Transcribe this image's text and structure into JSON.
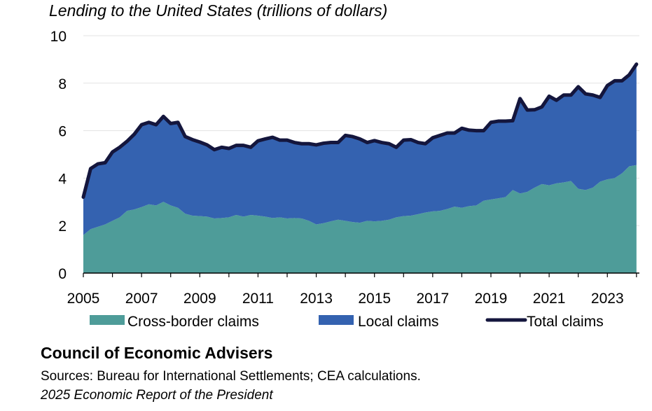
{
  "chart_data": {
    "type": "area",
    "title": "Lending to the United States (trillions of dollars)",
    "xlabel": "",
    "ylabel": "",
    "xlim": [
      2005,
      2024.1
    ],
    "ylim": [
      0,
      10
    ],
    "yticks": [
      0,
      2,
      4,
      6,
      8,
      10
    ],
    "xticks": [
      2005,
      2007,
      2009,
      2011,
      2013,
      2015,
      2017,
      2019,
      2021,
      2023
    ],
    "x": [
      2005.0,
      2005.25,
      2005.5,
      2005.75,
      2006.0,
      2006.25,
      2006.5,
      2006.75,
      2007.0,
      2007.25,
      2007.5,
      2007.75,
      2008.0,
      2008.25,
      2008.5,
      2008.75,
      2009.0,
      2009.25,
      2009.5,
      2009.75,
      2010.0,
      2010.25,
      2010.5,
      2010.75,
      2011.0,
      2011.25,
      2011.5,
      2011.75,
      2012.0,
      2012.25,
      2012.5,
      2012.75,
      2013.0,
      2013.25,
      2013.5,
      2013.75,
      2014.0,
      2014.25,
      2014.5,
      2014.75,
      2015.0,
      2015.25,
      2015.5,
      2015.75,
      2016.0,
      2016.25,
      2016.5,
      2016.75,
      2017.0,
      2017.25,
      2017.5,
      2017.75,
      2018.0,
      2018.25,
      2018.5,
      2018.75,
      2019.0,
      2019.25,
      2019.5,
      2019.75,
      2020.0,
      2020.25,
      2020.5,
      2020.75,
      2021.0,
      2021.25,
      2021.5,
      2021.75,
      2022.0,
      2022.25,
      2022.5,
      2022.75,
      2023.0,
      2023.25,
      2023.5,
      2023.75,
      2024.0
    ],
    "series": [
      {
        "name": "Cross-border claims",
        "kind": "area",
        "color": "#4e9c99",
        "values": [
          1.6,
          1.85,
          1.95,
          2.05,
          2.2,
          2.35,
          2.62,
          2.68,
          2.78,
          2.9,
          2.85,
          3.0,
          2.85,
          2.75,
          2.5,
          2.42,
          2.4,
          2.38,
          2.3,
          2.32,
          2.35,
          2.45,
          2.38,
          2.45,
          2.42,
          2.38,
          2.32,
          2.35,
          2.3,
          2.32,
          2.3,
          2.2,
          2.05,
          2.1,
          2.18,
          2.25,
          2.2,
          2.15,
          2.12,
          2.2,
          2.18,
          2.2,
          2.25,
          2.35,
          2.4,
          2.42,
          2.48,
          2.55,
          2.6,
          2.62,
          2.7,
          2.8,
          2.75,
          2.82,
          2.85,
          3.05,
          3.1,
          3.15,
          3.2,
          3.5,
          3.35,
          3.42,
          3.6,
          3.75,
          3.7,
          3.78,
          3.82,
          3.88,
          3.55,
          3.5,
          3.6,
          3.85,
          3.95,
          4.0,
          4.2,
          4.5,
          4.55
        ]
      },
      {
        "name": "Local claims",
        "kind": "area",
        "color": "#3462b0",
        "values": [
          1.6,
          2.55,
          2.65,
          2.6,
          2.9,
          2.95,
          2.93,
          3.17,
          3.47,
          3.45,
          3.4,
          3.6,
          3.45,
          3.6,
          3.25,
          3.2,
          3.12,
          3.02,
          2.9,
          2.98,
          2.9,
          2.93,
          3.0,
          2.85,
          3.15,
          3.27,
          3.4,
          3.25,
          3.3,
          3.18,
          3.15,
          3.25,
          3.35,
          3.37,
          3.32,
          3.25,
          3.6,
          3.6,
          3.53,
          3.3,
          3.4,
          3.3,
          3.2,
          2.95,
          3.2,
          3.2,
          3.02,
          2.9,
          3.1,
          3.18,
          3.2,
          3.1,
          3.35,
          3.2,
          3.15,
          2.95,
          3.25,
          3.25,
          3.2,
          2.92,
          4.0,
          3.45,
          3.28,
          3.25,
          3.75,
          3.5,
          3.68,
          3.62,
          4.3,
          4.05,
          3.9,
          3.55,
          3.95,
          4.1,
          3.9,
          3.85,
          4.25
        ]
      },
      {
        "name": "Total claims",
        "kind": "line",
        "color": "#14163d",
        "values": [
          3.2,
          4.4,
          4.6,
          4.65,
          5.1,
          5.3,
          5.55,
          5.85,
          6.25,
          6.35,
          6.25,
          6.6,
          6.3,
          6.35,
          5.75,
          5.62,
          5.52,
          5.4,
          5.2,
          5.3,
          5.25,
          5.38,
          5.38,
          5.3,
          5.57,
          5.65,
          5.72,
          5.6,
          5.6,
          5.5,
          5.45,
          5.45,
          5.4,
          5.47,
          5.5,
          5.5,
          5.8,
          5.75,
          5.65,
          5.5,
          5.58,
          5.5,
          5.45,
          5.3,
          5.6,
          5.62,
          5.5,
          5.45,
          5.7,
          5.8,
          5.9,
          5.9,
          6.1,
          6.02,
          6.0,
          6.0,
          6.35,
          6.4,
          6.4,
          6.42,
          7.35,
          6.87,
          6.88,
          7.0,
          7.45,
          7.28,
          7.5,
          7.5,
          7.85,
          7.55,
          7.5,
          7.4,
          7.9,
          8.1,
          8.1,
          8.35,
          8.8
        ]
      }
    ]
  },
  "legend": {
    "cross_border": "Cross-border claims",
    "local": "Local claims",
    "total": "Total claims"
  },
  "source": {
    "org": "Council of Economic Advisers",
    "line": "Sources: Bureau for International Settlements; CEA calculations.",
    "report": "2025 Economic Report of the President"
  }
}
